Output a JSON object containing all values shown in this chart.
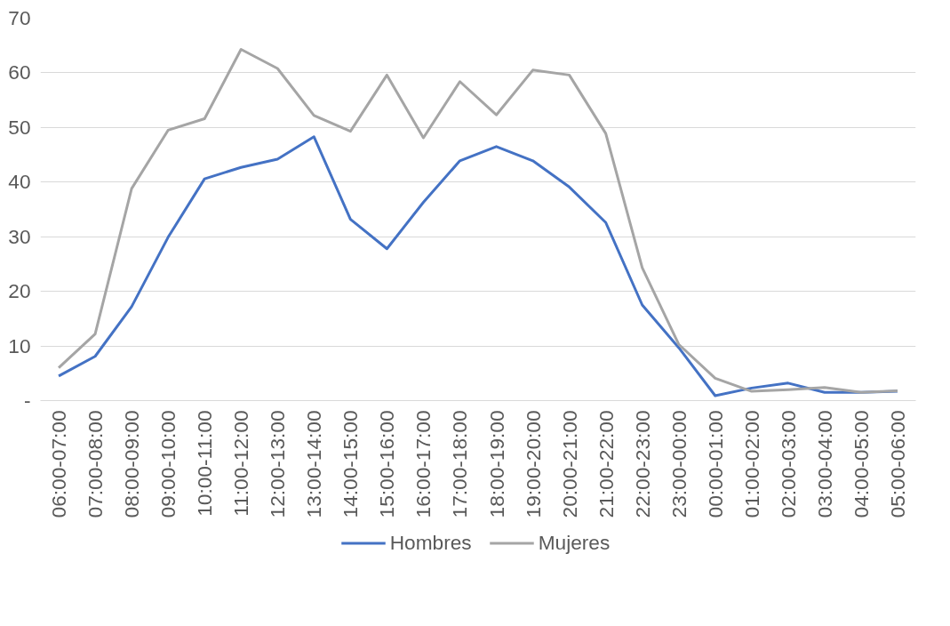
{
  "chart_data": {
    "type": "line",
    "categories": [
      "06:00-07:00",
      "07:00-08:00",
      "08:00-09:00",
      "09:00-10:00",
      "10:00-11:00",
      "11:00-12:00",
      "12:00-13:00",
      "13:00-14:00",
      "14:00-15:00",
      "15:00-16:00",
      "16:00-17:00",
      "17:00-18:00",
      "18:00-19:00",
      "19:00-20:00",
      "20:00-21:00",
      "21:00-22:00",
      "22:00-23:00",
      "23:00-00:00",
      "00:00-01:00",
      "01:00-02:00",
      "02:00-03:00",
      "03:00-04:00",
      "04:00-05:00",
      "05:00-06:00"
    ],
    "series": [
      {
        "name": "Hombres",
        "color": "#4472c4",
        "values": [
          4.5,
          8.1,
          17.2,
          29.9,
          40.6,
          42.7,
          44.2,
          48.3,
          33.2,
          27.8,
          36.3,
          43.9,
          46.5,
          43.9,
          39.1,
          32.6,
          17.5,
          9.7,
          0.9,
          2.3,
          3.2,
          1.5,
          1.5,
          1.7
        ]
      },
      {
        "name": "Mujeres",
        "color": "#a5a5a5",
        "values": [
          6.0,
          12.2,
          38.8,
          49.5,
          51.6,
          64.3,
          60.8,
          52.2,
          49.3,
          59.6,
          48.1,
          58.4,
          52.3,
          60.5,
          59.6,
          48.9,
          24.3,
          10.3,
          4.1,
          1.7,
          2.0,
          2.4,
          1.5,
          1.8
        ]
      }
    ],
    "ylim": [
      0,
      70
    ],
    "yticks": [
      {
        "value": 0,
        "label": "-"
      },
      10,
      20,
      30,
      40,
      50,
      60,
      70
    ],
    "grid": "y",
    "legend": "bottom",
    "marker": "none",
    "line_style": "solid"
  }
}
